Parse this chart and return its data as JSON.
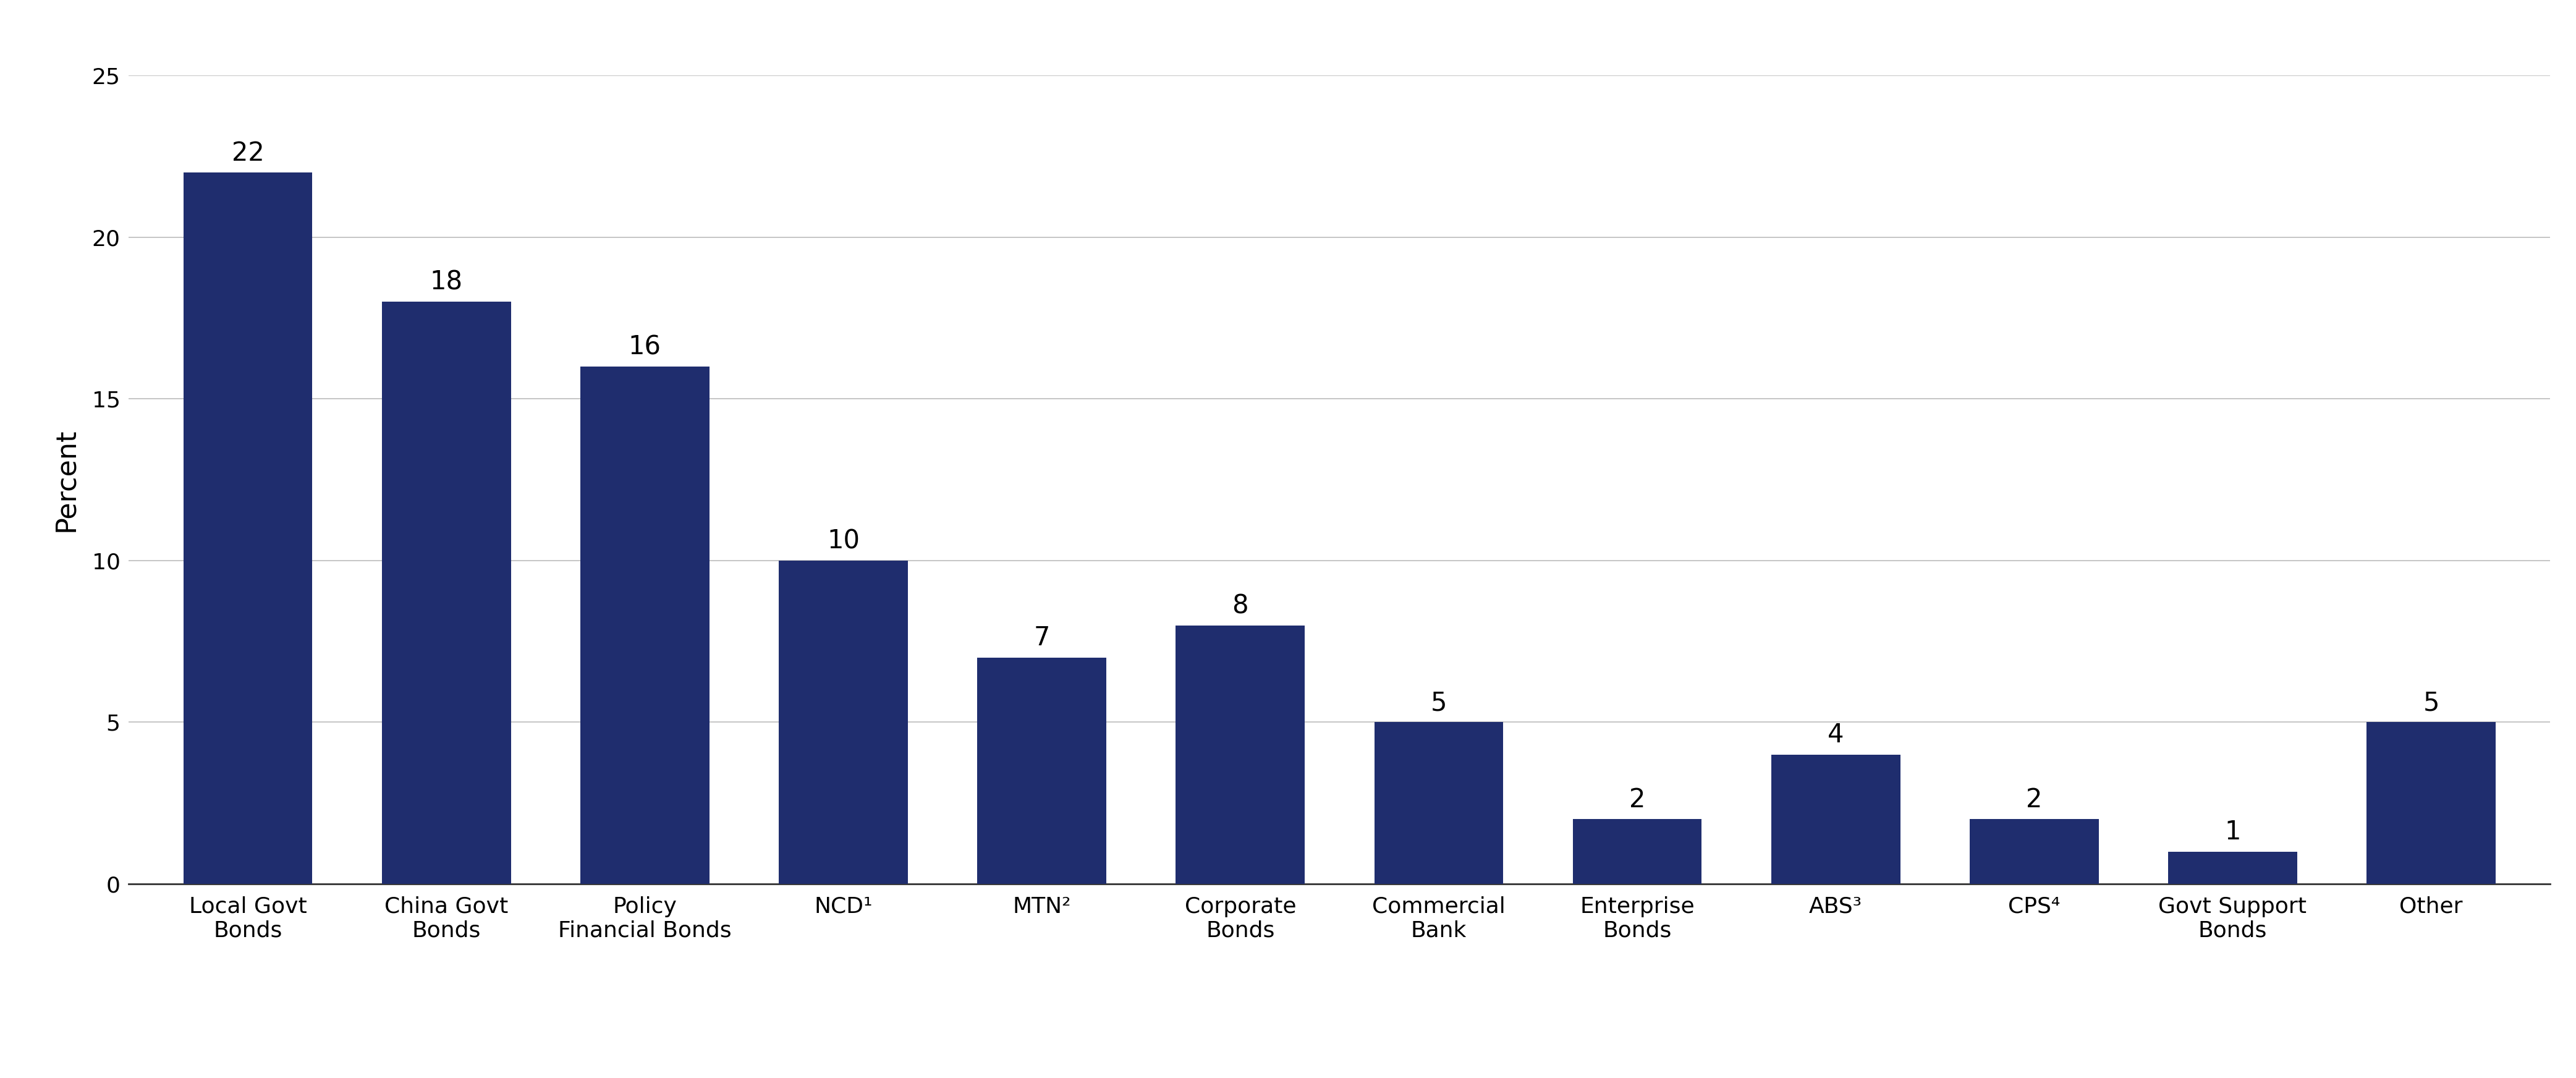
{
  "categories": [
    "Local Govt\nBonds",
    "China Govt\nBonds",
    "Policy\nFinancial Bonds",
    "NCD¹",
    "MTN²",
    "Corporate\nBonds",
    "Commercial\nBank",
    "Enterprise\nBonds",
    "ABS³",
    "CPS⁴",
    "Govt Support\nBonds",
    "Other"
  ],
  "values": [
    22,
    18,
    16,
    10,
    7,
    8,
    5,
    2,
    4,
    2,
    1,
    5
  ],
  "bar_color": "#1f2d6e",
  "ylabel": "Percent",
  "ylim": [
    0,
    25
  ],
  "yticks": [
    0,
    5,
    10,
    15,
    20,
    25
  ],
  "bar_label_fontsize": 30,
  "ylabel_fontsize": 32,
  "tick_label_fontsize": 26,
  "background_color": "#ffffff",
  "grid_color": "#bbbbbb",
  "bar_width": 0.65
}
